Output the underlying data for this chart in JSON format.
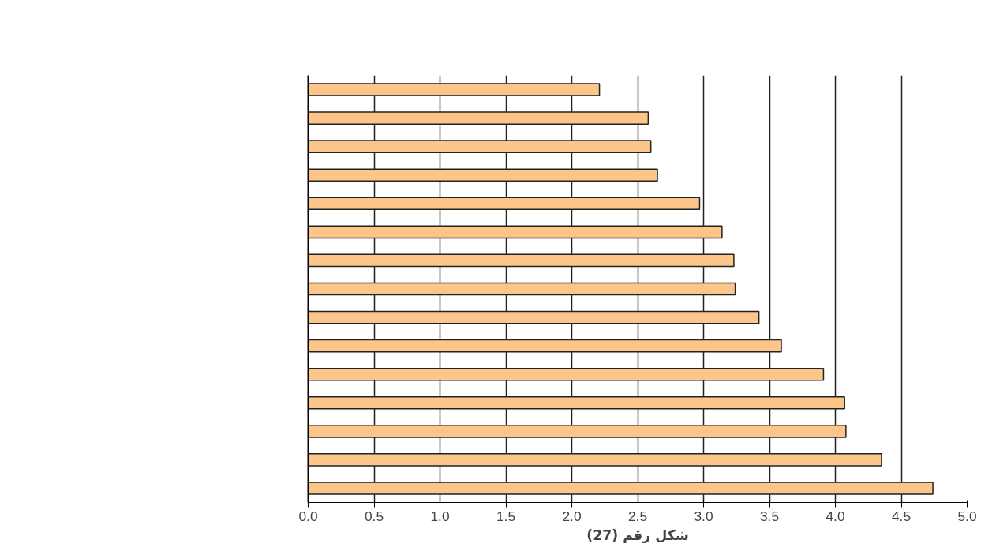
{
  "chart_data": {
    "type": "bar",
    "orientation": "horizontal",
    "xlabel": "شكل رقم (27)",
    "categories": [
      null,
      null,
      null,
      null,
      null,
      null,
      null,
      null,
      null,
      null,
      null,
      null,
      null,
      null,
      null
    ],
    "values": [
      2.21,
      2.58,
      2.6,
      2.65,
      2.97,
      3.14,
      3.23,
      3.24,
      3.42,
      3.59,
      3.91,
      4.07,
      4.08,
      4.35,
      4.74
    ],
    "color": "#fcc58a",
    "xlim": [
      0,
      5
    ],
    "xticks": [
      {
        "value": 0,
        "label": "0.0"
      },
      {
        "value": 0.5,
        "label": "0.5"
      },
      {
        "value": 1,
        "label": "1.0"
      },
      {
        "value": 1.5,
        "label": "1.5"
      },
      {
        "value": 2,
        "label": "2.0"
      },
      {
        "value": 2.5,
        "label": "2.5"
      },
      {
        "value": 3,
        "label": "3.0"
      },
      {
        "value": 3.5,
        "label": "3.5"
      },
      {
        "value": 4,
        "label": "4.0"
      },
      {
        "value": 4.5,
        "label": "4.5"
      },
      {
        "value": 5,
        "label": "5.0"
      }
    ],
    "grid": "x"
  }
}
